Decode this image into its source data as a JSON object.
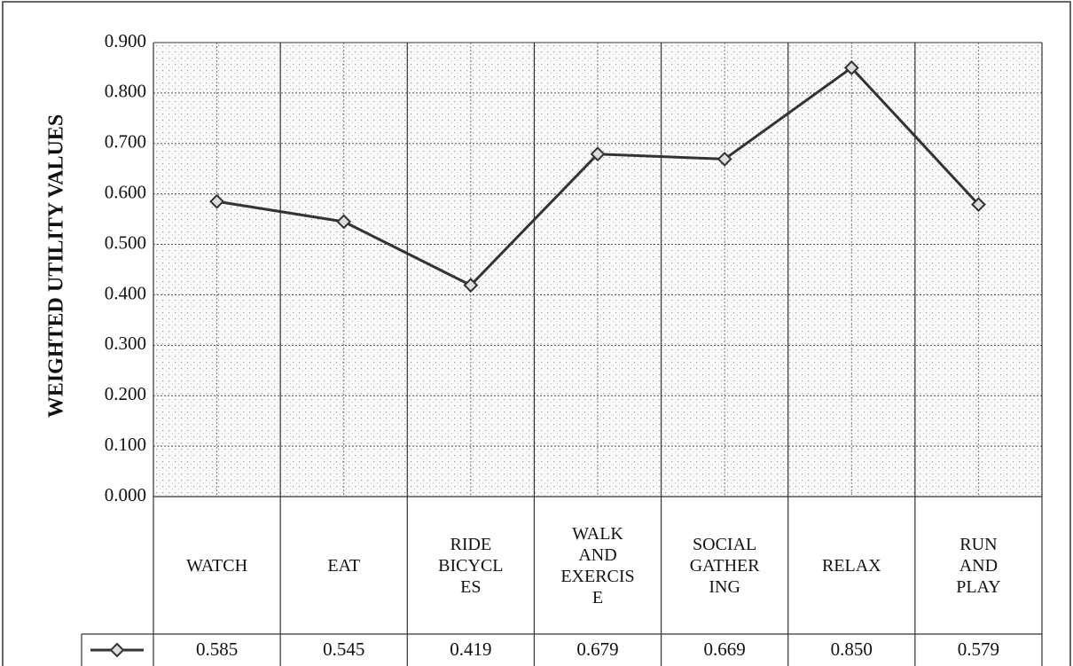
{
  "chart_data": {
    "type": "line",
    "y_label": "WEIGHTED UTILITY VALUES",
    "categories": [
      "WATCH",
      "EAT",
      "RIDE\nBICYCL\nES",
      "WALK\nAND\nEXERCIS\nE",
      "SOCIAL\nGATHER\nING",
      "RELAX",
      "RUN\nAND\nPLAY"
    ],
    "values": [
      0.585,
      0.545,
      0.419,
      0.679,
      0.669,
      0.85,
      0.579
    ],
    "value_labels": [
      "0.585",
      "0.545",
      "0.419",
      "0.679",
      "0.669",
      "0.850",
      "0.579"
    ],
    "color": "#333333",
    "ylim": [
      0,
      0.9
    ],
    "yticks": [
      {
        "value": 0,
        "label": "0.000"
      },
      {
        "value": 0.1,
        "label": "0.100"
      },
      {
        "value": 0.2,
        "label": "0.200"
      },
      {
        "value": 0.3,
        "label": "0.300"
      },
      {
        "value": 0.4,
        "label": "0.400"
      },
      {
        "value": 0.5,
        "label": "0.500"
      },
      {
        "value": 0.6,
        "label": "0.600"
      },
      {
        "value": 0.7,
        "label": "0.700"
      },
      {
        "value": 0.8,
        "label": "0.800"
      },
      {
        "value": 0.9,
        "label": "0.900"
      }
    ],
    "grid": true
  }
}
